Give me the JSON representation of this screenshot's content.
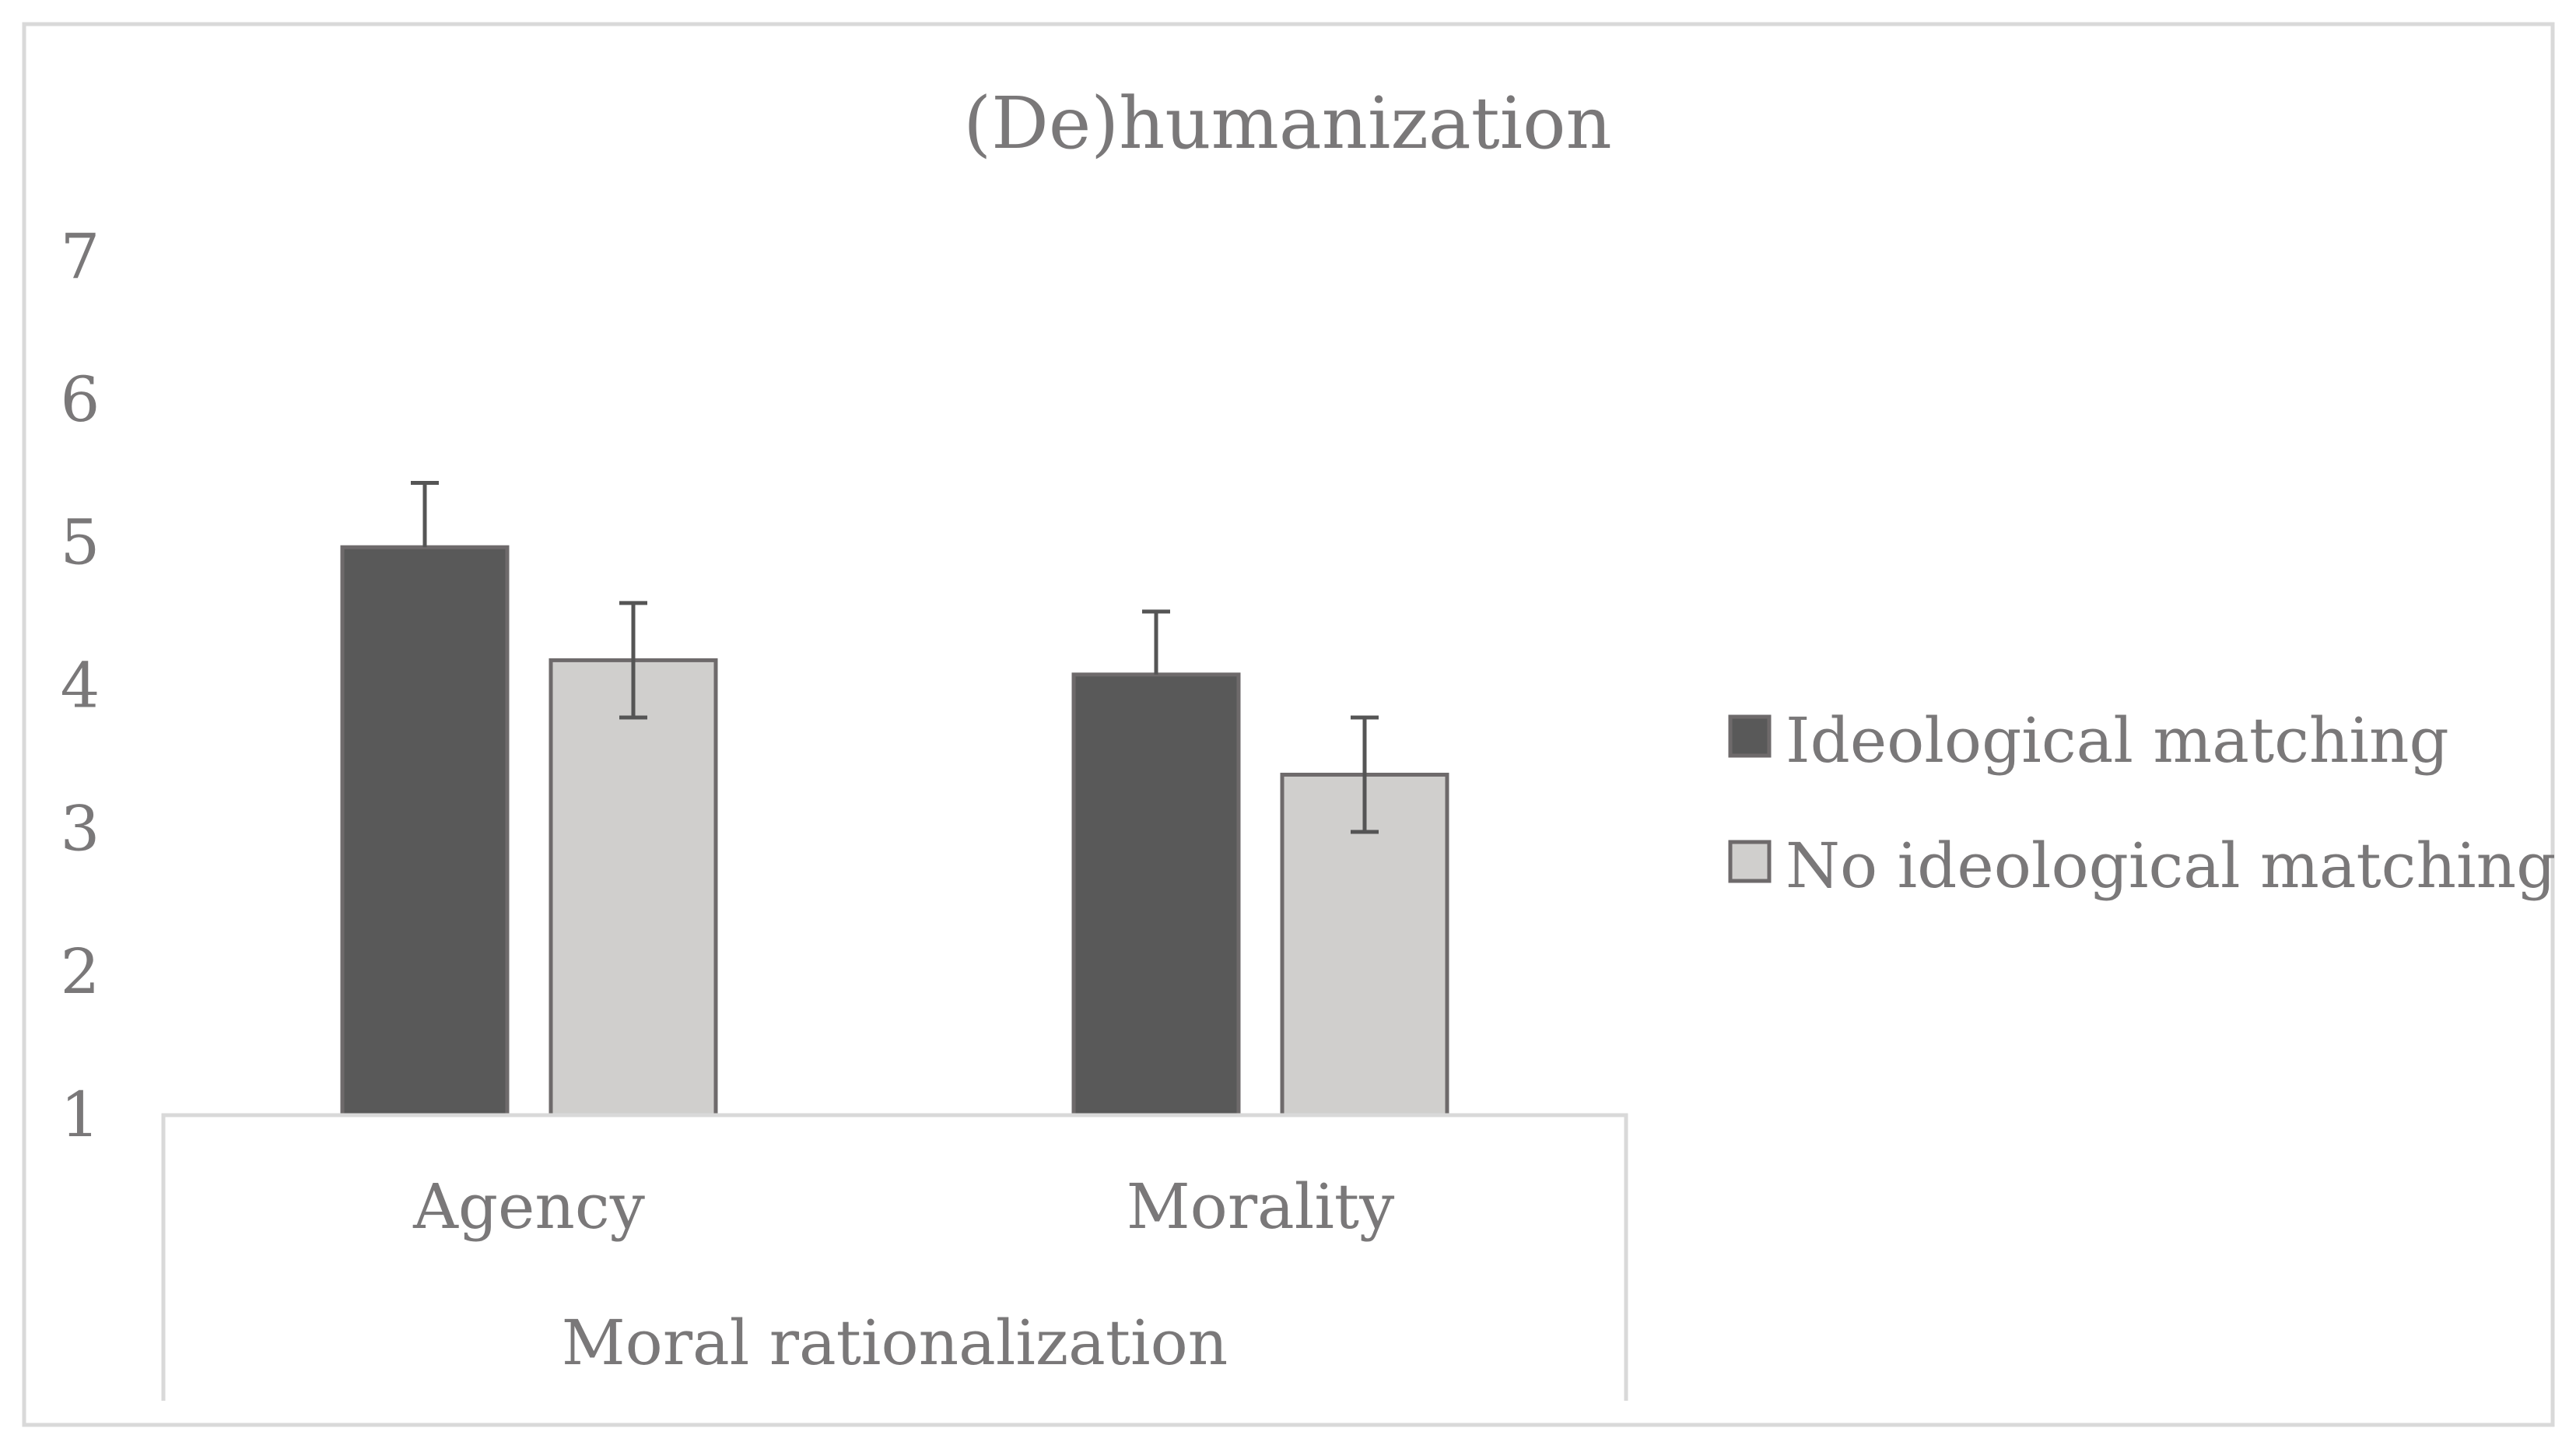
{
  "chart_data": {
    "type": "bar",
    "title": "(De)humanization",
    "categories": [
      "Agency",
      "Morality"
    ],
    "group_label": "Moral rationalization",
    "xlabel": "",
    "ylabel": "",
    "ylim": [
      1,
      7
    ],
    "yticks": [
      1,
      2,
      3,
      4,
      5,
      6,
      7
    ],
    "grid": false,
    "legend_position": "right",
    "series": [
      {
        "name": "Ideological matching",
        "values": [
          4.97,
          4.08
        ],
        "error": [
          0.45,
          0.44
        ],
        "color": "#595959"
      },
      {
        "name": "No ideological matching",
        "values": [
          4.18,
          3.38
        ],
        "error": [
          0.4,
          0.4
        ],
        "color": "#d0cfcd"
      }
    ]
  },
  "colors": {
    "text": "#7a7879",
    "bar_outline": "#6e6a6b",
    "error_bar": "#555555",
    "frame": "#d9d9d9"
  }
}
